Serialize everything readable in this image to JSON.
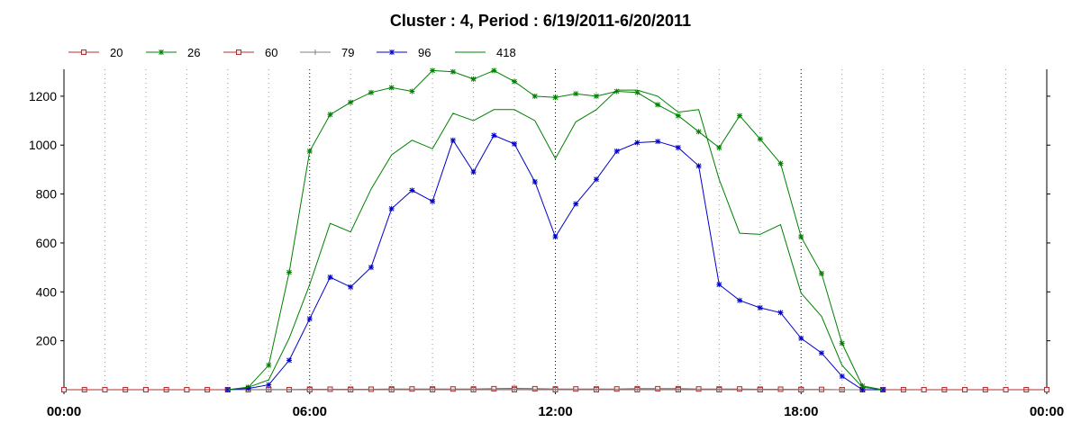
{
  "chart_data": {
    "type": "line",
    "title": "Cluster : 4, Period : 6/19/2011-6/20/2011",
    "xlabel": "",
    "ylabel": "",
    "x_ticks": [
      "00:00",
      "06:00",
      "12:00",
      "18:00",
      "00:00"
    ],
    "x_range_hours": [
      0,
      24
    ],
    "y_ticks": [
      200,
      400,
      600,
      800,
      1000,
      1200
    ],
    "ylim": [
      0,
      1310
    ],
    "grid": "vertical dotted lines",
    "legend": "top-left",
    "series": [
      {
        "name": "20",
        "color": "#b03030",
        "marker": "square",
        "x": [
          0,
          0.5,
          1,
          1.5,
          2,
          2.5,
          3,
          3.5,
          4,
          4.5,
          5,
          5.5,
          6,
          6.5,
          7,
          7.5,
          8,
          8.5,
          9,
          9.5,
          10,
          10.5,
          11,
          11.5,
          12,
          12.5,
          13,
          13.5,
          14,
          14.5,
          15,
          15.5,
          16,
          16.5,
          17,
          17.5,
          18,
          18.5,
          19,
          19.5,
          20,
          20.5,
          21,
          21.5,
          22,
          22.5,
          23,
          23.5,
          24
        ],
        "y": [
          0,
          0,
          0,
          0,
          0,
          0,
          0,
          0,
          0,
          0,
          0,
          0,
          2,
          2,
          2,
          2,
          3,
          3,
          3,
          3,
          3,
          4,
          5,
          4,
          3,
          3,
          3,
          3,
          4,
          4,
          4,
          3,
          3,
          3,
          2,
          2,
          1,
          1,
          0,
          0,
          0,
          0,
          0,
          0,
          0,
          0,
          0,
          0,
          0
        ]
      },
      {
        "name": "26",
        "color": "#008000",
        "marker": "star",
        "x": [
          4,
          4.5,
          5,
          5.5,
          6,
          6.5,
          7,
          7.5,
          8,
          8.5,
          9,
          9.5,
          10,
          10.5,
          11,
          11.5,
          12,
          12.5,
          13,
          13.5,
          14,
          14.5,
          15,
          15.5,
          16,
          16.5,
          17,
          17.5,
          18,
          18.5,
          19,
          19.5,
          20
        ],
        "y": [
          0,
          10,
          100,
          480,
          975,
          1125,
          1175,
          1215,
          1235,
          1220,
          1305,
          1300,
          1270,
          1305,
          1260,
          1200,
          1195,
          1210,
          1200,
          1220,
          1215,
          1165,
          1120,
          1055,
          990,
          1120,
          1025,
          925,
          625,
          475,
          190,
          15,
          0
        ]
      },
      {
        "name": "60",
        "color": "#b03030",
        "marker": "square",
        "x": [
          0,
          1,
          2,
          3,
          4,
          5,
          6,
          7,
          8,
          9,
          10,
          11,
          12,
          13,
          14,
          15,
          16,
          17,
          18,
          19,
          20,
          21,
          22,
          23,
          24
        ],
        "y": [
          0,
          0,
          0,
          0,
          0,
          0,
          0,
          0,
          0,
          0,
          0,
          0,
          0,
          0,
          0,
          0,
          0,
          0,
          0,
          0,
          0,
          0,
          0,
          0,
          0
        ]
      },
      {
        "name": "79",
        "color": "#808080",
        "marker": "plus",
        "x": [
          4,
          5,
          6,
          7,
          8,
          9,
          10,
          11,
          12,
          13,
          14,
          15,
          16,
          17,
          18,
          19,
          20
        ],
        "y": [
          0,
          1,
          1,
          1,
          1,
          1,
          1,
          1,
          1,
          1,
          1,
          1,
          1,
          1,
          1,
          0,
          0
        ]
      },
      {
        "name": "96",
        "color": "#0000cc",
        "marker": "star",
        "x": [
          4,
          4.5,
          5,
          5.5,
          6,
          6.5,
          7,
          7.5,
          8,
          8.5,
          9,
          9.5,
          10,
          10.5,
          11,
          11.5,
          12,
          12.5,
          13,
          13.5,
          14,
          14.5,
          15,
          15.5,
          16,
          16.5,
          17,
          17.5,
          18,
          18.5,
          19,
          19.5,
          20
        ],
        "y": [
          0,
          5,
          20,
          120,
          290,
          460,
          420,
          500,
          740,
          815,
          770,
          1020,
          890,
          1040,
          1005,
          850,
          625,
          760,
          860,
          975,
          1010,
          1015,
          990,
          915,
          430,
          365,
          335,
          315,
          210,
          150,
          55,
          0,
          0
        ]
      },
      {
        "name": "418",
        "color": "#008000",
        "marker": "none",
        "x": [
          4,
          4.5,
          5,
          5.5,
          6,
          6.5,
          7,
          7.5,
          8,
          8.5,
          9,
          9.5,
          10,
          10.5,
          11,
          11.5,
          12,
          12.5,
          13,
          13.5,
          14,
          14.5,
          15,
          15.5,
          16,
          16.5,
          17,
          17.5,
          18,
          18.5,
          19,
          19.5,
          20
        ],
        "y": [
          0,
          10,
          40,
          210,
          430,
          680,
          645,
          820,
          960,
          1020,
          985,
          1130,
          1100,
          1145,
          1145,
          1100,
          945,
          1095,
          1145,
          1225,
          1225,
          1200,
          1135,
          1145,
          860,
          640,
          635,
          675,
          395,
          300,
          100,
          10,
          0
        ]
      }
    ]
  }
}
